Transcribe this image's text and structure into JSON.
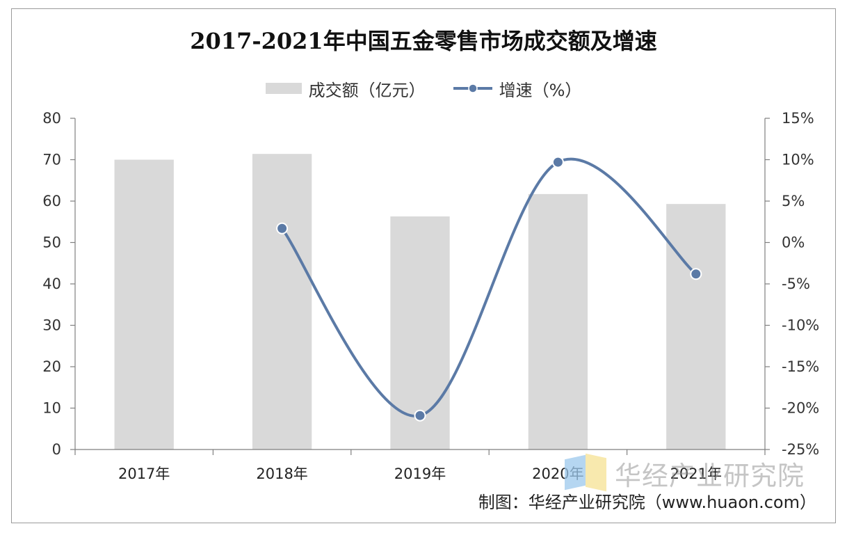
{
  "chart_data": {
    "type": "bar",
    "title": "2017-2021年中国五金零售市场成交额及增速",
    "categories": [
      "2017年",
      "2018年",
      "2019年",
      "2020年",
      "2021年"
    ],
    "series": [
      {
        "name": "成交额（亿元）",
        "type": "bar",
        "axis": "left",
        "values": [
          70,
          71.4,
          56.3,
          61.7,
          59.3
        ]
      },
      {
        "name": "增速（%）",
        "type": "line",
        "axis": "right",
        "values": [
          null,
          1.7,
          -20.9,
          9.7,
          -3.8
        ]
      }
    ],
    "ylim": [
      0,
      80
    ],
    "y_ticks": [
      "0",
      "10",
      "20",
      "30",
      "40",
      "50",
      "60",
      "70",
      "80"
    ],
    "y2lim": [
      -25,
      15
    ],
    "y2_ticks": [
      "-25%",
      "-20%",
      "-15%",
      "-10%",
      "-5%",
      "0%",
      "5%",
      "10%",
      "15%"
    ],
    "legend_position": "top-center",
    "grid": false,
    "colors": {
      "bar": "#d9d9d9",
      "line": "#5b7aa6"
    }
  },
  "legend": {
    "bar_label": "成交额（亿元）",
    "line_label": "增速（%）"
  },
  "watermark": "华经产业研究院",
  "source": "制图：华经产业研究院（www.huaon.com）"
}
